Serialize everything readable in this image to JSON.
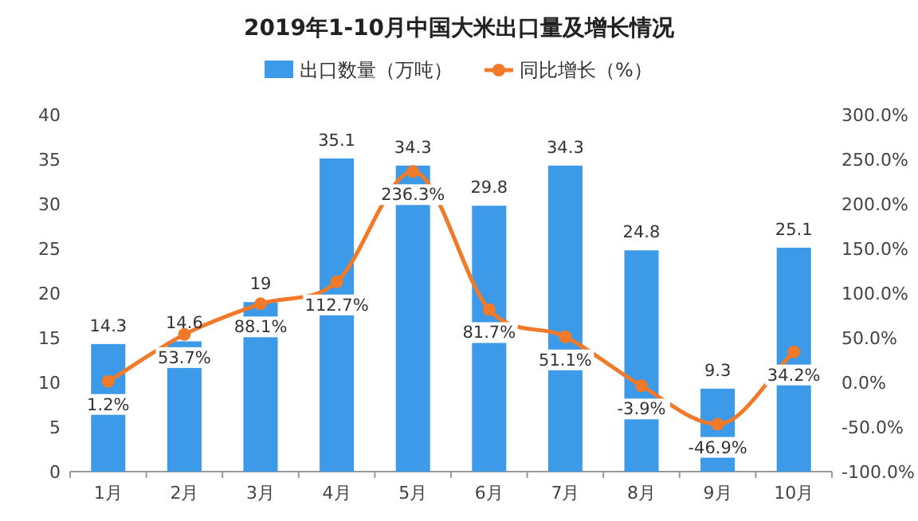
{
  "chart_data": {
    "type": "bar",
    "title": "2019年1-10月中国大米出口量及增长情况",
    "categories": [
      "1月",
      "2月",
      "3月",
      "4月",
      "5月",
      "6月",
      "7月",
      "8月",
      "9月",
      "10月"
    ],
    "series": [
      {
        "name": "出口数量（万吨）",
        "color": "#3d9ae8",
        "values": [
          14.3,
          14.6,
          19,
          35.1,
          34.3,
          29.8,
          34.3,
          24.8,
          9.3,
          25.1
        ],
        "value_labels": [
          "14.3",
          "14.6",
          "19",
          "35.1",
          "34.3",
          "29.8",
          "34.3",
          "24.8",
          "9.3",
          "25.1"
        ]
      },
      {
        "name": "同比增长（%）",
        "type": "line",
        "axis": "y2",
        "color": "#f07a2a",
        "marker": "circle",
        "values": [
          1.2,
          53.7,
          88.1,
          112.7,
          236.3,
          81.7,
          51.1,
          -3.9,
          -46.9,
          34.2
        ],
        "value_labels": [
          "1.2%",
          "53.7%",
          "88.1%",
          "112.7%",
          "236.3%",
          "81.7%",
          "51.1%",
          "-3.9%",
          "-46.9%",
          "34.2%"
        ]
      }
    ],
    "ylim": [
      0,
      40
    ],
    "yticks": [
      0,
      5,
      10,
      15,
      20,
      25,
      30,
      35,
      40
    ],
    "y2lim": [
      -100,
      300
    ],
    "y2ticks": [
      {
        "value": -100,
        "label": "-100.0%"
      },
      {
        "value": -50,
        "label": "-50.0%"
      },
      {
        "value": 0,
        "label": "0.0%"
      },
      {
        "value": 50,
        "label": "50.0%"
      },
      {
        "value": 100,
        "label": "100.0%"
      },
      {
        "value": 150,
        "label": "150.0%"
      },
      {
        "value": 200,
        "label": "200.0%"
      },
      {
        "value": 250,
        "label": "250.0%"
      },
      {
        "value": 300,
        "label": "300.0%"
      }
    ],
    "legend": "top",
    "grid": false
  }
}
